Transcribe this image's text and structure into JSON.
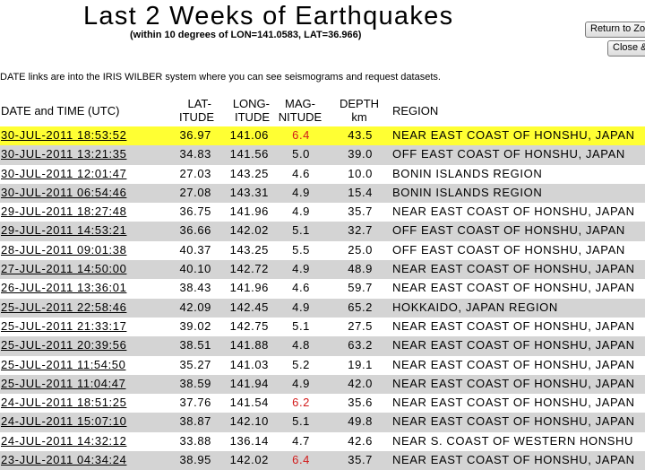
{
  "page": {
    "title": "Last 2 Weeks of Earthquakes",
    "subtitle": "(within 10 degrees of LON=141.0583, LAT=36.966)",
    "info": "DATE links are into the IRIS WILBER system where you can see seismograms and request datasets."
  },
  "buttons": {
    "return_label": "Return to Zoom",
    "close_label": "Close & Return"
  },
  "table": {
    "headers": {
      "date": "DATE and TIME (UTC)",
      "lat_1": "LAT-",
      "lat_2": "ITUDE",
      "lon_1": "LONG-",
      "lon_2": "ITUDE",
      "mag_1": "MAG-",
      "mag_2": "NITUDE",
      "dep_1": "DEPTH",
      "dep_2": "km",
      "region": "REGION"
    },
    "highlight_color": "#ffff33",
    "alt_row_color": "#d4d4d4",
    "strong_mag_color": "#d21a1a",
    "rows": [
      {
        "date": "30-JUL-2011 18:53:52",
        "lat": "36.97",
        "lon": "141.06",
        "mag": "6.4",
        "depth": "43.5",
        "region": "NEAR EAST COAST OF HONSHU, JAPAN",
        "strong": true,
        "selected": true
      },
      {
        "date": "30-JUL-2011 13:21:35",
        "lat": "34.83",
        "lon": "141.56",
        "mag": "5.0",
        "depth": "39.0",
        "region": "OFF EAST COAST OF HONSHU, JAPAN",
        "strong": false,
        "selected": false
      },
      {
        "date": "30-JUL-2011 12:01:47",
        "lat": "27.03",
        "lon": "143.25",
        "mag": "4.6",
        "depth": "10.0",
        "region": "BONIN ISLANDS REGION",
        "strong": false,
        "selected": false
      },
      {
        "date": "30-JUL-2011 06:54:46",
        "lat": "27.08",
        "lon": "143.31",
        "mag": "4.9",
        "depth": "15.4",
        "region": "BONIN ISLANDS REGION",
        "strong": false,
        "selected": false
      },
      {
        "date": "29-JUL-2011 18:27:48",
        "lat": "36.75",
        "lon": "141.96",
        "mag": "4.9",
        "depth": "35.7",
        "region": "NEAR EAST COAST OF HONSHU, JAPAN",
        "strong": false,
        "selected": false
      },
      {
        "date": "29-JUL-2011 14:53:21",
        "lat": "36.66",
        "lon": "142.02",
        "mag": "5.1",
        "depth": "32.7",
        "region": "OFF EAST COAST OF HONSHU, JAPAN",
        "strong": false,
        "selected": false
      },
      {
        "date": "28-JUL-2011 09:01:38",
        "lat": "40.37",
        "lon": "143.25",
        "mag": "5.5",
        "depth": "25.0",
        "region": "OFF EAST COAST OF HONSHU, JAPAN",
        "strong": false,
        "selected": false
      },
      {
        "date": "27-JUL-2011 14:50:00",
        "lat": "40.10",
        "lon": "142.72",
        "mag": "4.9",
        "depth": "48.9",
        "region": "NEAR EAST COAST OF HONSHU, JAPAN",
        "strong": false,
        "selected": false
      },
      {
        "date": "26-JUL-2011 13:36:01",
        "lat": "38.43",
        "lon": "141.96",
        "mag": "4.6",
        "depth": "59.7",
        "region": "NEAR EAST COAST OF HONSHU, JAPAN",
        "strong": false,
        "selected": false
      },
      {
        "date": "25-JUL-2011 22:58:46",
        "lat": "42.09",
        "lon": "142.45",
        "mag": "4.9",
        "depth": "65.2",
        "region": "HOKKAIDO, JAPAN REGION",
        "strong": false,
        "selected": false
      },
      {
        "date": "25-JUL-2011 21:33:17",
        "lat": "39.02",
        "lon": "142.75",
        "mag": "5.1",
        "depth": "27.5",
        "region": "NEAR EAST COAST OF HONSHU, JAPAN",
        "strong": false,
        "selected": false
      },
      {
        "date": "25-JUL-2011 20:39:56",
        "lat": "38.51",
        "lon": "141.88",
        "mag": "4.8",
        "depth": "63.2",
        "region": "NEAR EAST COAST OF HONSHU, JAPAN",
        "strong": false,
        "selected": false
      },
      {
        "date": "25-JUL-2011 11:54:50",
        "lat": "35.27",
        "lon": "141.03",
        "mag": "5.2",
        "depth": "19.1",
        "region": "NEAR EAST COAST OF HONSHU, JAPAN",
        "strong": false,
        "selected": false
      },
      {
        "date": "25-JUL-2011 11:04:47",
        "lat": "38.59",
        "lon": "141.94",
        "mag": "4.9",
        "depth": "42.0",
        "region": "NEAR EAST COAST OF HONSHU, JAPAN",
        "strong": false,
        "selected": false
      },
      {
        "date": "24-JUL-2011 18:51:25",
        "lat": "37.76",
        "lon": "141.54",
        "mag": "6.2",
        "depth": "35.6",
        "region": "NEAR EAST COAST OF HONSHU, JAPAN",
        "strong": true,
        "selected": false
      },
      {
        "date": "24-JUL-2011 15:07:10",
        "lat": "38.87",
        "lon": "142.10",
        "mag": "5.1",
        "depth": "49.8",
        "region": "NEAR EAST COAST OF HONSHU, JAPAN",
        "strong": false,
        "selected": false
      },
      {
        "date": "24-JUL-2011 14:32:12",
        "lat": "33.88",
        "lon": "136.14",
        "mag": "4.7",
        "depth": "42.6",
        "region": "NEAR S. COAST OF WESTERN HONSHU",
        "strong": false,
        "selected": false
      },
      {
        "date": "23-JUL-2011 04:34:24",
        "lat": "38.95",
        "lon": "142.02",
        "mag": "6.4",
        "depth": "35.7",
        "region": "NEAR EAST COAST OF HONSHU, JAPAN",
        "strong": true,
        "selected": false
      }
    ]
  }
}
